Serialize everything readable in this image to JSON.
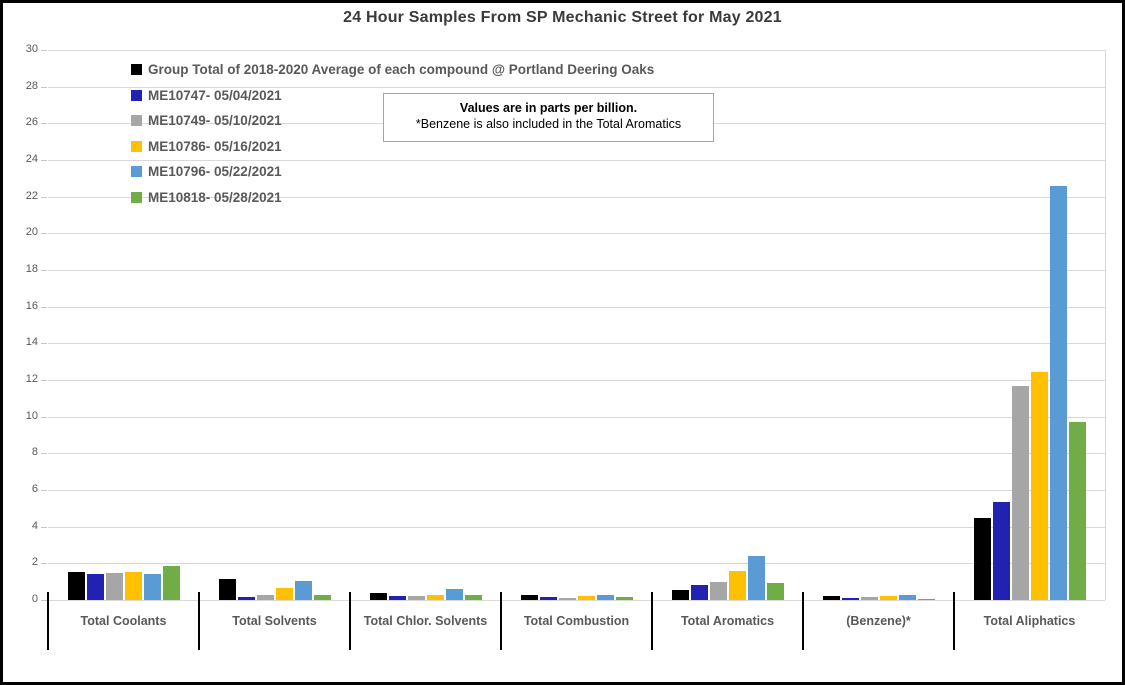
{
  "title": "24 Hour Samples From SP Mechanic Street for May 2021",
  "annotation": {
    "line1": "Values are in parts per billion.",
    "line2": "*Benzene is also included in the Total Aromatics"
  },
  "colors": {
    "grid": "#d9d9d9",
    "axis_text": "#595959",
    "title_text": "#3a3a3a",
    "separator": "#000000"
  },
  "chart_data": {
    "type": "bar",
    "title": "24 Hour Samples From SP Mechanic Street for May 2021",
    "xlabel": "",
    "ylabel": "",
    "ylim": [
      0,
      30
    ],
    "ytick_step": 2,
    "grid": true,
    "legend_position": "top-left-inside",
    "categories": [
      "Total Coolants",
      "Total Solvents",
      "Total Chlor. Solvents",
      "Total Combustion",
      "Total Aromatics",
      "(Benzene)*",
      "Total Aliphatics"
    ],
    "series": [
      {
        "name": "Group Total of 2018-2020 Average of each compound @ Portland Deering Oaks",
        "color": "#000000",
        "values": [
          1.55,
          1.15,
          0.4,
          0.3,
          0.55,
          0.2,
          4.45
        ]
      },
      {
        "name": "ME10747- 05/04/2021",
        "color": "#2222b2",
        "values": [
          1.4,
          0.15,
          0.2,
          0.15,
          0.8,
          0.1,
          5.35
        ]
      },
      {
        "name": "ME10749- 05/10/2021",
        "color": "#a6a6a6",
        "values": [
          1.45,
          0.3,
          0.2,
          0.1,
          1.0,
          0.15,
          11.7
        ]
      },
      {
        "name": "ME10786- 05/16/2021",
        "color": "#ffc000",
        "values": [
          1.55,
          0.65,
          0.25,
          0.2,
          1.6,
          0.2,
          12.45
        ]
      },
      {
        "name": "ME10796- 05/22/2021",
        "color": "#5b9bd5",
        "values": [
          1.4,
          1.05,
          0.6,
          0.3,
          2.4,
          0.25,
          22.6
        ]
      },
      {
        "name": "ME10818- 05/28/2021",
        "color": "#70ad47",
        "values": [
          1.85,
          0.3,
          0.3,
          0.15,
          0.9,
          0.05,
          9.7
        ]
      }
    ]
  }
}
